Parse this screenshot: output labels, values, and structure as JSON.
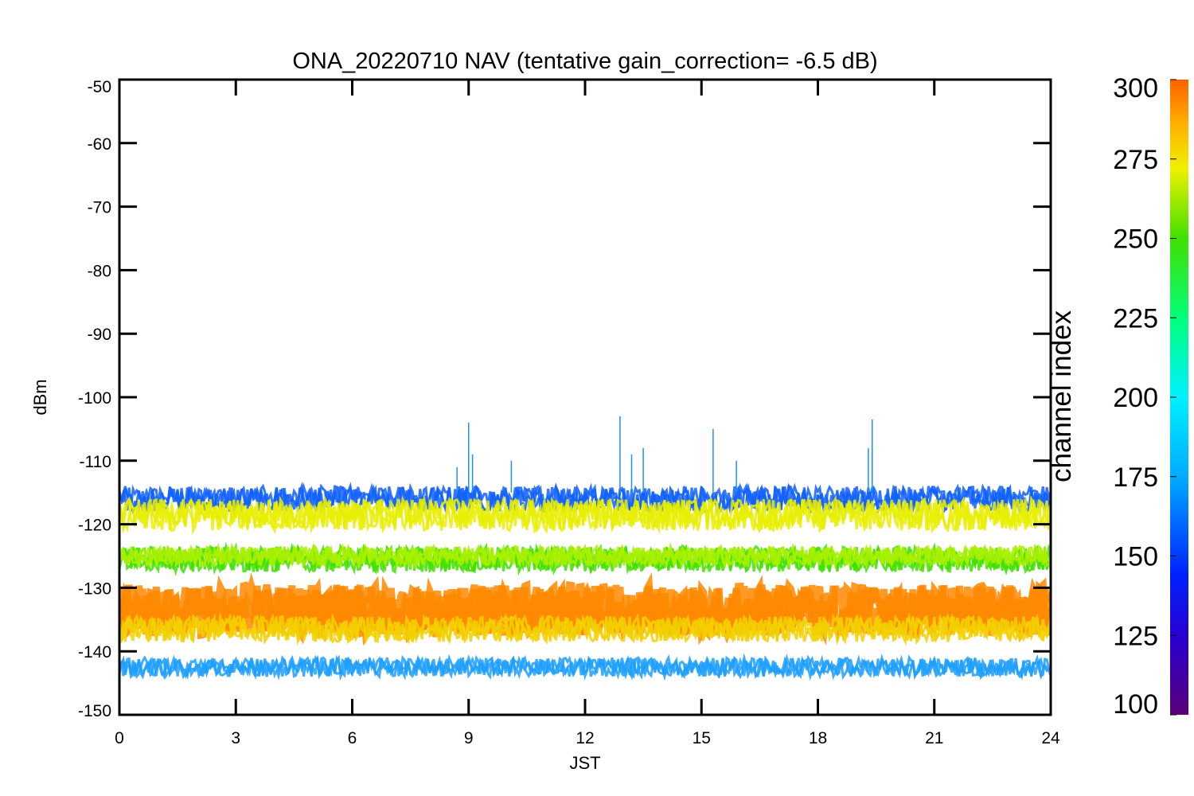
{
  "chart_data": {
    "type": "line",
    "title": "ONA_20220710 NAV (tentative gain_correction= -6.5 dB)",
    "xlabel": "JST",
    "ylabel": "dBm",
    "xlim": [
      0,
      24
    ],
    "ylim": [
      -150,
      -50
    ],
    "x_ticks": [
      "0",
      "3",
      "6",
      "9",
      "12",
      "15",
      "18",
      "21",
      "24"
    ],
    "y_ticks": [
      "-50",
      "-60",
      "-70",
      "-80",
      "-90",
      "-100",
      "-110",
      "-120",
      "-130",
      "-140",
      "-150"
    ],
    "grid": false,
    "colorbar": {
      "title": "channel index",
      "range": [
        100,
        300
      ],
      "ticks": [
        "300",
        "275",
        "250",
        "225",
        "200",
        "175",
        "150",
        "125",
        "100"
      ],
      "colormap": "rainbow"
    },
    "series": [
      {
        "channels": [
          140,
          160
        ],
        "color": "#1060ff",
        "center_db": -116,
        "spread_db": 2
      },
      {
        "channels": [
          250,
          275
        ],
        "color": "#e8ef00",
        "center_db": -118.5,
        "spread_db": 2.5
      },
      {
        "channels": [
          200,
          250
        ],
        "color": "#40e000",
        "center_db": -125.5,
        "spread_db": 2
      },
      {
        "channels": [
          240,
          255
        ],
        "color": "#a8f000",
        "center_db": -125,
        "spread_db": 1.5
      },
      {
        "channels": [
          280,
          300
        ],
        "color": "#ff8800",
        "center_db": -133.5,
        "spread_db": 4
      },
      {
        "channels": [
          260,
          280
        ],
        "color": "#f2d000",
        "center_db": -136.5,
        "spread_db": 2
      },
      {
        "channels": [
          100,
          200
        ],
        "color": "#1e9fff",
        "center_db": -142.5,
        "spread_db": 1.5
      }
    ],
    "spikes": [
      {
        "x": 8.7,
        "y": -111
      },
      {
        "x": 9.0,
        "y": -104
      },
      {
        "x": 9.1,
        "y": -109
      },
      {
        "x": 10.1,
        "y": -110
      },
      {
        "x": 12.9,
        "y": -103
      },
      {
        "x": 13.2,
        "y": -109
      },
      {
        "x": 13.5,
        "y": -108
      },
      {
        "x": 15.3,
        "y": -105
      },
      {
        "x": 15.9,
        "y": -110
      },
      {
        "x": 19.4,
        "y": -103.5
      },
      {
        "x": 19.3,
        "y": -108
      }
    ]
  }
}
